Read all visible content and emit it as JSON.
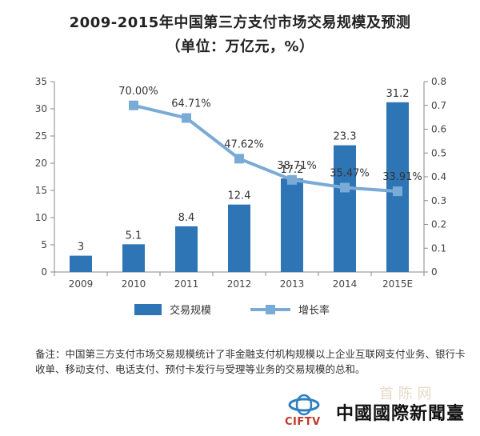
{
  "title_line1": "2009-2015年中国第三方支付市场交易规模及预测",
  "title_line2": "（单位：万亿元，%）",
  "note": "备注：中国第三方支付市场交易规模统计了非金融支付机构规模以上企业互联网支付业务、银行卡收单、移动支付、电话支付、预付卡发行与受理等业务的交易规模的总和。",
  "watermark": {
    "name_cn": "中國國際新聞臺",
    "name_latin": "CIFTV",
    "ghost_text": "首 陈 网",
    "logo_colors": [
      "#2f7fc1",
      "#c0392b"
    ]
  },
  "chart_data": {
    "type": "bar",
    "categories": [
      "2009",
      "2010",
      "2011",
      "2012",
      "2013",
      "2014",
      "2015E"
    ],
    "series": [
      {
        "name": "交易规模",
        "type": "bar",
        "axis": "left",
        "values": [
          3,
          5.1,
          8.4,
          12.4,
          17.2,
          23.3,
          31.2
        ],
        "labels": [
          "3",
          "5.1",
          "8.4",
          "12.4",
          "17.2",
          "23.3",
          "31.2"
        ],
        "color": "#2e75b6"
      },
      {
        "name": "增长率",
        "type": "line",
        "axis": "right",
        "values": [
          null,
          0.7,
          0.6471,
          0.4762,
          0.3871,
          0.3547,
          0.3391
        ],
        "labels": [
          "",
          "70.00%",
          "64.71%",
          "47.62%",
          "38.71%",
          "35.47%",
          "33.91%"
        ],
        "color": "#7aabd6"
      }
    ],
    "y_left": {
      "ylim": [
        0,
        35
      ],
      "ticks": [
        "0",
        "5",
        "10",
        "15",
        "20",
        "25",
        "30",
        "35"
      ]
    },
    "y_right": {
      "ylim": [
        0,
        0.8
      ],
      "ticks": [
        "0",
        "0.1",
        "0.2",
        "0.3",
        "0.4",
        "0.5",
        "0.6",
        "0.7",
        "0.8"
      ]
    },
    "grid": false,
    "legend": "bottom"
  }
}
